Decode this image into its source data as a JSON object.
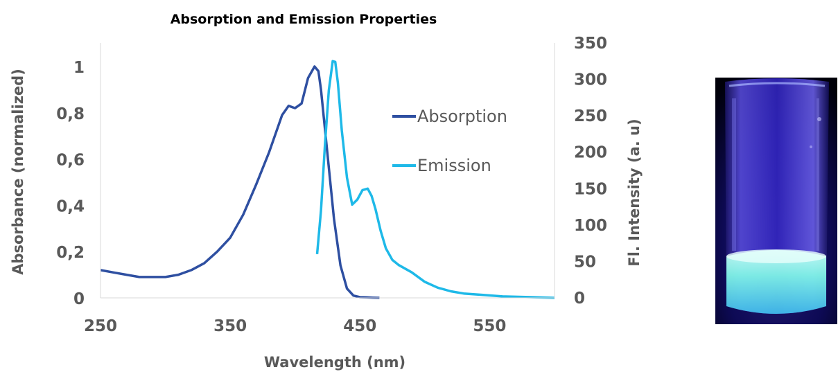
{
  "chart_data": {
    "type": "line",
    "title": "Absorption and Emission Properties",
    "xlabel": "Wavelength (nm)",
    "ylabel": "Absorbance (normalized)",
    "y2label": "Fl. Intensity (a. u)",
    "xlim": [
      250,
      600
    ],
    "ylim": [
      0,
      1.08
    ],
    "y2lim": [
      0,
      350
    ],
    "x_ticks": [
      "250",
      "350",
      "450",
      "550"
    ],
    "x_tick_values": [
      250,
      350,
      450,
      550
    ],
    "y_ticks": [
      "0",
      "0,2",
      "0,4",
      "0,6",
      "0,8",
      "1"
    ],
    "y_tick_values": [
      0,
      0.2,
      0.4,
      0.6,
      0.8,
      1.0
    ],
    "y2_ticks": [
      "0",
      "50",
      "100",
      "150",
      "200",
      "250",
      "300",
      "350"
    ],
    "y2_tick_values": [
      0,
      50,
      100,
      150,
      200,
      250,
      300,
      350
    ],
    "grid": false,
    "legend_position": "right-center",
    "series": [
      {
        "name": "Absorption",
        "axis": "left",
        "color": "#2E4FA1",
        "x": [
          250,
          260,
          270,
          280,
          290,
          300,
          310,
          320,
          330,
          340,
          350,
          360,
          370,
          380,
          390,
          395,
          400,
          405,
          410,
          415,
          418,
          420,
          425,
          430,
          435,
          440,
          445,
          450,
          455,
          460,
          465
        ],
        "y": [
          0.12,
          0.11,
          0.1,
          0.09,
          0.09,
          0.09,
          0.1,
          0.12,
          0.15,
          0.2,
          0.26,
          0.36,
          0.49,
          0.63,
          0.79,
          0.83,
          0.82,
          0.84,
          0.95,
          1.0,
          0.98,
          0.9,
          0.62,
          0.34,
          0.14,
          0.04,
          0.01,
          0.003,
          0.002,
          0.001,
          0.0
        ]
      },
      {
        "name": "Emission",
        "axis": "right",
        "color": "#1EB9E8",
        "x": [
          417,
          420,
          423,
          426,
          429,
          431,
          433,
          436,
          440,
          444,
          448,
          452,
          456,
          459,
          462,
          466,
          470,
          475,
          480,
          490,
          500,
          510,
          520,
          530,
          545,
          560,
          580,
          600
        ],
        "y": [
          60,
          120,
          210,
          285,
          325,
          324,
          295,
          230,
          165,
          128,
          135,
          148,
          150,
          140,
          122,
          92,
          68,
          52,
          45,
          35,
          22,
          14,
          9,
          6,
          4,
          2,
          1,
          0
        ]
      }
    ]
  },
  "photo": {
    "icon": "uv-fluorescent-vial-photo"
  }
}
